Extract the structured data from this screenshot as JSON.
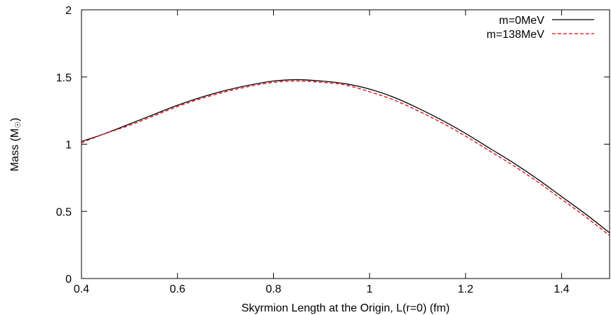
{
  "chart_data": {
    "type": "line",
    "xlabel": "Skyrmion Length at the Origin, L(r=0) (fm)",
    "ylabel_main": "Mass (M",
    "ylabel_close": ")",
    "xlim": [
      0.4,
      1.5
    ],
    "ylim": [
      0,
      2
    ],
    "xticks": [
      {
        "value": 0.4,
        "label": "0.4"
      },
      {
        "value": 0.6,
        "label": "0.6"
      },
      {
        "value": 0.8,
        "label": "0.8"
      },
      {
        "value": 1.0,
        "label": "1"
      },
      {
        "value": 1.2,
        "label": "1.2"
      },
      {
        "value": 1.4,
        "label": "1.4"
      }
    ],
    "yticks": [
      {
        "value": 0,
        "label": "0"
      },
      {
        "value": 0.5,
        "label": "0.5"
      },
      {
        "value": 1.0,
        "label": "1"
      },
      {
        "value": 1.5,
        "label": "1.5"
      },
      {
        "value": 2.0,
        "label": "2"
      }
    ],
    "grid": false,
    "legend_position": "top-right",
    "series": [
      {
        "name": "m=0MeV",
        "color": "#000000",
        "dash": "solid",
        "x": [
          0.4,
          0.45,
          0.5,
          0.55,
          0.6,
          0.65,
          0.7,
          0.75,
          0.8,
          0.85,
          0.9,
          0.95,
          1.0,
          1.05,
          1.1,
          1.15,
          1.2,
          1.25,
          1.3,
          1.35,
          1.4,
          1.45,
          1.5
        ],
        "y": [
          1.02,
          1.08,
          1.15,
          1.22,
          1.29,
          1.35,
          1.4,
          1.44,
          1.47,
          1.48,
          1.47,
          1.45,
          1.41,
          1.35,
          1.27,
          1.18,
          1.08,
          0.97,
          0.86,
          0.74,
          0.61,
          0.48,
          0.34
        ]
      },
      {
        "name": "m=138MeV",
        "color": "#e8000b",
        "dash": "dashed",
        "x": [
          0.4,
          0.45,
          0.5,
          0.55,
          0.6,
          0.65,
          0.7,
          0.75,
          0.8,
          0.85,
          0.9,
          0.95,
          1.0,
          1.05,
          1.1,
          1.15,
          1.2,
          1.25,
          1.3,
          1.35,
          1.4,
          1.45,
          1.5
        ],
        "y": [
          1.01,
          1.08,
          1.14,
          1.21,
          1.28,
          1.34,
          1.39,
          1.43,
          1.46,
          1.47,
          1.46,
          1.44,
          1.39,
          1.33,
          1.25,
          1.16,
          1.06,
          0.95,
          0.84,
          0.72,
          0.59,
          0.46,
          0.32
        ]
      }
    ]
  }
}
